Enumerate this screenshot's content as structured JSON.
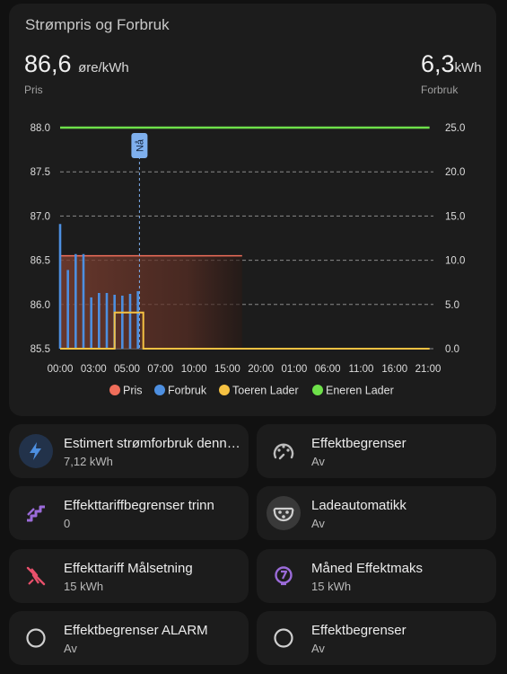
{
  "card": {
    "title": "Strømpris og Forbruk",
    "price_value": "86,6",
    "price_unit": "øre/kWh",
    "price_label": "Pris",
    "usage_value": "6,3",
    "usage_unit": "kWh",
    "usage_label": "Forbruk"
  },
  "chart_data": {
    "type": "bar",
    "title": "",
    "x_ticks": [
      "00:00",
      "03:00",
      "05:00",
      "07:00",
      "10:00",
      "15:00",
      "20:00",
      "01:00",
      "06:00",
      "11:00",
      "16:00",
      "21:00"
    ],
    "y_left_ticks": [
      "88.0",
      "87.5",
      "87.0",
      "86.5",
      "86.0",
      "85.5"
    ],
    "y_right_ticks": [
      "25.0",
      "20.0",
      "15.0",
      "10.0",
      "5.0",
      "0.0"
    ],
    "ylim_left": [
      85.5,
      88.0
    ],
    "ylim_right": [
      0,
      25
    ],
    "x_range_hours": [
      0,
      48
    ],
    "now_hour": 10.2,
    "now_label": "Nå",
    "legend_position": "bottom",
    "series": [
      {
        "name": "Pris",
        "type": "step-area",
        "axis": "left",
        "color": "#f06e5a",
        "points": [
          [
            0,
            86.55
          ],
          [
            23.4,
            86.55
          ]
        ]
      },
      {
        "name": "Forbruk",
        "type": "bar",
        "axis": "right",
        "color": "#4d8fe0",
        "hours": [
          0,
          1,
          2,
          3,
          4,
          5,
          6,
          7,
          8,
          9,
          10
        ],
        "values": [
          14.1,
          8.9,
          10.7,
          10.7,
          5.8,
          6.3,
          6.3,
          6.1,
          6.0,
          6.2,
          6.5
        ]
      },
      {
        "name": "Toeren Lader",
        "type": "step-line",
        "axis": "right",
        "color": "#f5c142",
        "points": [
          [
            0,
            0
          ],
          [
            7,
            0
          ],
          [
            7,
            4.1
          ],
          [
            10.7,
            4.1
          ],
          [
            10.7,
            0
          ],
          [
            47.5,
            0
          ]
        ]
      },
      {
        "name": "Eneren Lader",
        "type": "line",
        "axis": "right",
        "color": "#6ee04a",
        "points": [
          [
            0,
            25
          ],
          [
            47.5,
            25
          ]
        ]
      }
    ]
  },
  "tiles": [
    {
      "title": "Estimert strømforbruk denne timen",
      "value": "7,12 kWh",
      "icon": "lightning-icon"
    },
    {
      "title": "Effektbegrenser",
      "value": "Av",
      "icon": "speedometer-icon"
    },
    {
      "title": "Effekttariffbegrenser trinn",
      "value": "0",
      "icon": "stairs-icon"
    },
    {
      "title": "Ladeautomatikk",
      "value": "Av",
      "icon": "ev-plug-icon"
    },
    {
      "title": "Effekttariff Målsetning",
      "value": "15 kWh",
      "icon": "power-off-icon"
    },
    {
      "title": "Måned Effektmaks",
      "value": "15 kWh",
      "icon": "meter-icon"
    },
    {
      "title": "Effektbegrenser ALARM",
      "value": "Av",
      "icon": "circle-outline-icon"
    },
    {
      "title": "Effektbegrenser",
      "value": "Av",
      "icon": "circle-outline-icon"
    }
  ],
  "colors": {
    "background": "#111111",
    "card": "#1c1c1c",
    "pris": "#f06e5a",
    "forbruk": "#4d8fe0",
    "toeren": "#f5c142",
    "eneren": "#6ee04a",
    "accent_purple": "#9b6bd9",
    "alert_red": "#e8506b"
  }
}
